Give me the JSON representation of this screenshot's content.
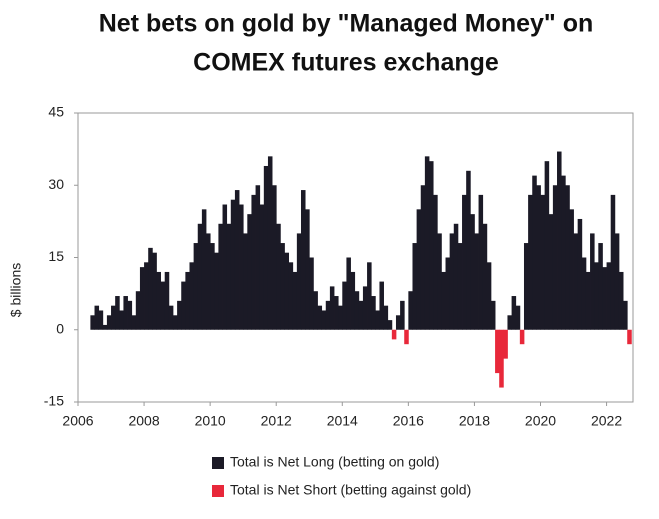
{
  "chart_data": {
    "type": "signed-area",
    "title": [
      "Net bets on gold by \"Managed Money\" on",
      "COMEX futures exchange"
    ],
    "y_label": "$ billions",
    "positive_color": "#1b1a26",
    "negative_color": "#e8283a",
    "legend": [
      {
        "label": "Total is Net Long (betting on gold)",
        "color": "#1b1a26"
      },
      {
        "label": "Total is Net Short (betting against gold)",
        "color": "#e8283a"
      }
    ],
    "xlim": [
      2006,
      2022.8
    ],
    "xticks": [
      2006,
      2008,
      2010,
      2012,
      2014,
      2016,
      2018,
      2020,
      2022
    ],
    "ylim": [
      -15,
      45
    ],
    "yticks": [
      -15,
      0,
      15,
      30,
      45
    ],
    "x": [
      2006.375,
      2006.5,
      2006.625,
      2006.75,
      2006.875,
      2007,
      2007.125,
      2007.25,
      2007.375,
      2007.5,
      2007.625,
      2007.75,
      2007.875,
      2008,
      2008.125,
      2008.25,
      2008.375,
      2008.5,
      2008.625,
      2008.75,
      2008.875,
      2009,
      2009.125,
      2009.25,
      2009.375,
      2009.5,
      2009.625,
      2009.75,
      2009.875,
      2010,
      2010.125,
      2010.25,
      2010.375,
      2010.5,
      2010.625,
      2010.75,
      2010.875,
      2011,
      2011.125,
      2011.25,
      2011.375,
      2011.5,
      2011.625,
      2011.75,
      2011.875,
      2012,
      2012.125,
      2012.25,
      2012.375,
      2012.5,
      2012.625,
      2012.75,
      2012.875,
      2013,
      2013.125,
      2013.25,
      2013.375,
      2013.5,
      2013.625,
      2013.75,
      2013.875,
      2014,
      2014.125,
      2014.25,
      2014.375,
      2014.5,
      2014.625,
      2014.75,
      2014.875,
      2015,
      2015.125,
      2015.25,
      2015.375,
      2015.5,
      2015.625,
      2015.75,
      2015.875,
      2016,
      2016.125,
      2016.25,
      2016.375,
      2016.5,
      2016.625,
      2016.75,
      2016.875,
      2017,
      2017.125,
      2017.25,
      2017.375,
      2017.5,
      2017.625,
      2017.75,
      2017.875,
      2018,
      2018.125,
      2018.25,
      2018.375,
      2018.5,
      2018.625,
      2018.75,
      2018.875,
      2019,
      2019.125,
      2019.25,
      2019.375,
      2019.5,
      2019.625,
      2019.75,
      2019.875,
      2020,
      2020.125,
      2020.25,
      2020.375,
      2020.5,
      2020.625,
      2020.75,
      2020.875,
      2021,
      2021.125,
      2021.25,
      2021.375,
      2021.5,
      2021.625,
      2021.75,
      2021.875,
      2022,
      2022.125,
      2022.25,
      2022.375,
      2022.5,
      2022.625
    ],
    "values": [
      3,
      5,
      4,
      1,
      3,
      5,
      7,
      4,
      7,
      6,
      3,
      8,
      13,
      14,
      17,
      16,
      12,
      10,
      12,
      5,
      3,
      6,
      10,
      12,
      14,
      18,
      22,
      25,
      20,
      18,
      16,
      22,
      26,
      22,
      27,
      29,
      26,
      20,
      24,
      28,
      30,
      26,
      34,
      36,
      30,
      22,
      18,
      16,
      14,
      12,
      20,
      29,
      25,
      15,
      8,
      5,
      4,
      6,
      9,
      7,
      5,
      10,
      15,
      12,
      8,
      6,
      9,
      14,
      7,
      4,
      10,
      5,
      2,
      -2,
      3,
      6,
      -3,
      8,
      18,
      25,
      30,
      36,
      35,
      28,
      20,
      12,
      15,
      20,
      22,
      18,
      28,
      33,
      24,
      20,
      28,
      22,
      14,
      6,
      -9,
      -12,
      -6,
      3,
      7,
      5,
      -3,
      18,
      28,
      32,
      30,
      28,
      35,
      24,
      30,
      37,
      32,
      30,
      25,
      20,
      23,
      15,
      12,
      20,
      14,
      18,
      13,
      14,
      28,
      20,
      12,
      6,
      -3
    ]
  }
}
